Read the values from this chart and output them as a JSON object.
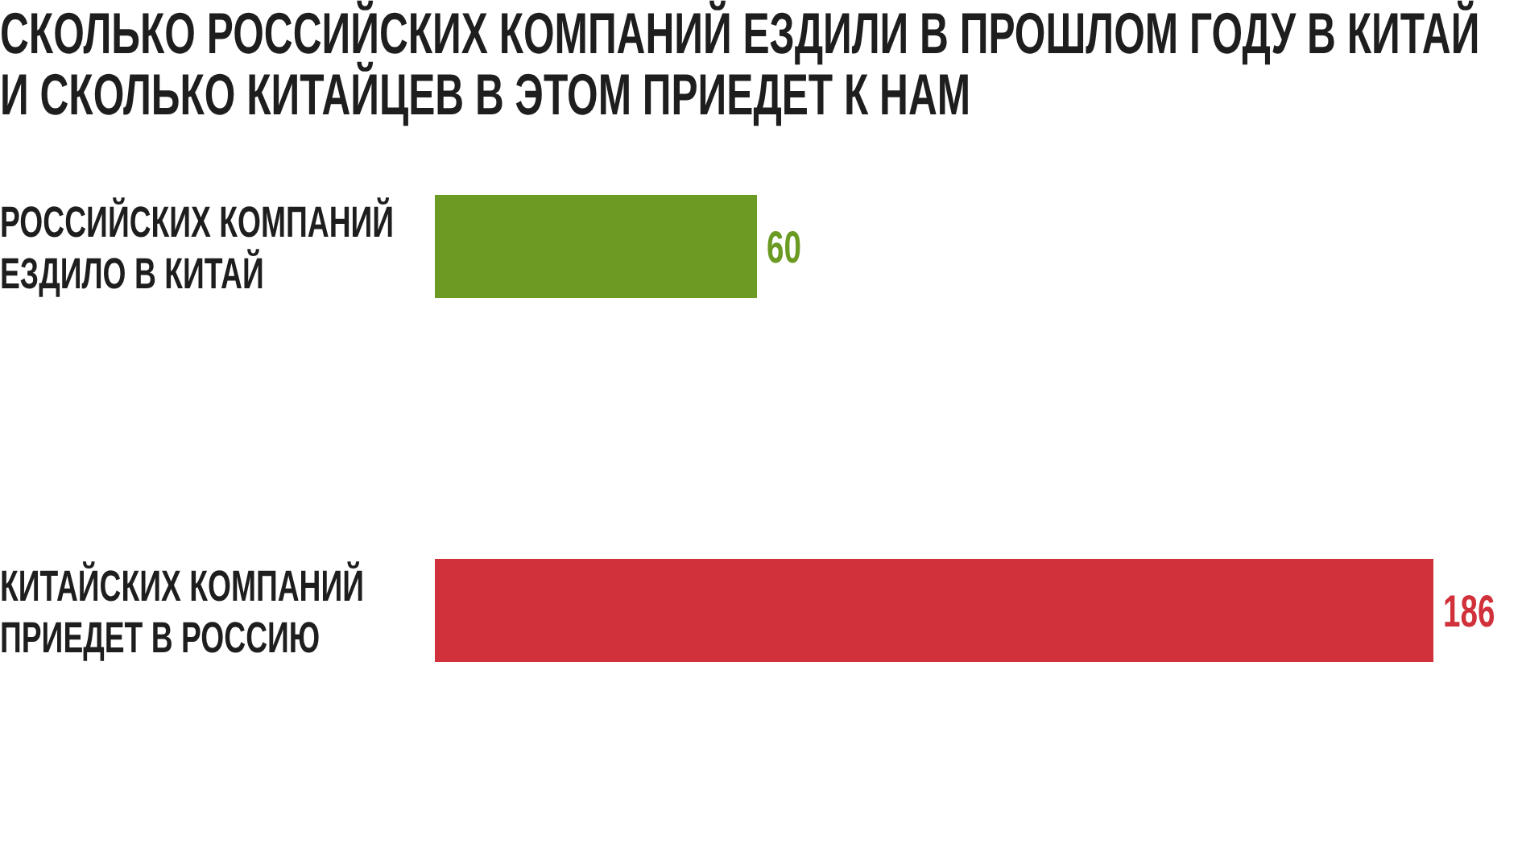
{
  "chart_data": {
    "type": "bar",
    "orientation": "horizontal",
    "title": "СКОЛЬКО РОССИЙСКИХ КОМПАНИЙ ЕЗДИЛИ В ПРОШЛОМ ГОДУ В КИТАЙ И СКОЛЬКО КИТАЙЦЕВ В ЭТОМ ПРИЕДЕТ К НАМ",
    "categories": [
      "РОССИЙСКИХ КОМПАНИЙ ЕЗДИЛО В КИТАЙ",
      "КИТАЙСКИХ КОМПАНИЙ ПРИЕДЕТ В РОССИЮ"
    ],
    "values": [
      60,
      186
    ],
    "colors": [
      "#6b9b22",
      "#d1313a"
    ],
    "data_labels": true
  }
}
